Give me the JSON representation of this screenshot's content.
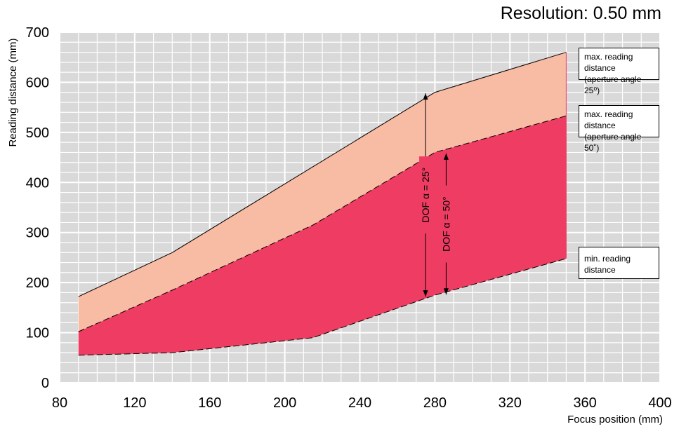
{
  "chart_data": {
    "type": "area",
    "title": "Resolution: 0.50 mm",
    "xlabel": "Focus position (mm)",
    "ylabel": "Reading distance (mm)",
    "xlim": [
      80,
      400
    ],
    "ylim": [
      0,
      700
    ],
    "xticks": [
      "80",
      "120",
      "160",
      "200",
      "240",
      "280",
      "320",
      "360",
      "400"
    ],
    "yticks": [
      "0",
      "100",
      "200",
      "300",
      "400",
      "500",
      "600",
      "700"
    ],
    "grid": true,
    "series": [
      {
        "name": "max. reading distance (aperture angle 25°)",
        "color": "#f8bba3",
        "line": "solid",
        "points": [
          [
            90,
            172
          ],
          [
            140,
            260
          ],
          [
            280,
            580
          ],
          [
            350,
            660
          ]
        ]
      },
      {
        "name": "max. reading distance (aperture angle 50°)",
        "color": "#ee3c62",
        "line": "dashed",
        "points": [
          [
            90,
            102
          ],
          [
            140,
            185
          ],
          [
            215,
            315
          ],
          [
            280,
            460
          ],
          [
            350,
            533
          ]
        ]
      },
      {
        "name": "min. reading distance",
        "color": "#000000",
        "line": "dashed",
        "points": [
          [
            90,
            55
          ],
          [
            140,
            60
          ],
          [
            215,
            90
          ],
          [
            280,
            175
          ],
          [
            350,
            248
          ]
        ]
      }
    ],
    "annotations": [
      {
        "text": "DOF α = 25°",
        "x": 275,
        "y_from": 172,
        "y_to": 578
      },
      {
        "text": "DOF α = 50°",
        "x": 286,
        "y_from": 176,
        "y_to": 458
      }
    ],
    "legend_entries": [
      {
        "line1": "max. reading distance",
        "line2": "(aperture angle 25⁰)"
      },
      {
        "line1": "max. reading distance",
        "line2": "(aperture angle 50˚)"
      },
      {
        "line1": "min. reading distance",
        "line2": ""
      }
    ]
  }
}
